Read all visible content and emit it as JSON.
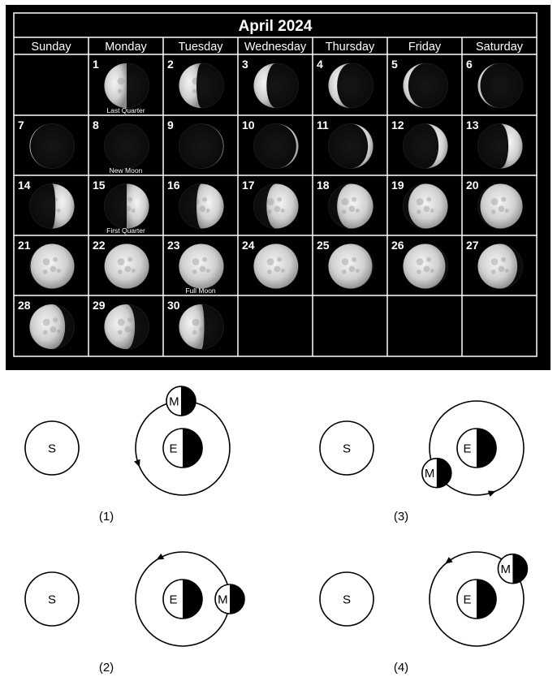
{
  "calendar": {
    "title": "April 2024",
    "weekdays": [
      "Sunday",
      "Monday",
      "Tuesday",
      "Wednesday",
      "Thursday",
      "Friday",
      "Saturday"
    ],
    "first_weekday_index": 1,
    "days": [
      {
        "day": "1",
        "phase": 0.75,
        "label": "Last Quarter"
      },
      {
        "day": "2",
        "phase": 0.785,
        "label": ""
      },
      {
        "day": "3",
        "phase": 0.82,
        "label": ""
      },
      {
        "day": "4",
        "phase": 0.855,
        "label": ""
      },
      {
        "day": "5",
        "phase": 0.89,
        "label": ""
      },
      {
        "day": "6",
        "phase": 0.925,
        "label": ""
      },
      {
        "day": "7",
        "phase": 0.96,
        "label": ""
      },
      {
        "day": "8",
        "phase": 0.0,
        "label": "New Moon"
      },
      {
        "day": "9",
        "phase": 0.035,
        "label": ""
      },
      {
        "day": "10",
        "phase": 0.07,
        "label": ""
      },
      {
        "day": "11",
        "phase": 0.11,
        "label": ""
      },
      {
        "day": "12",
        "phase": 0.15,
        "label": ""
      },
      {
        "day": "13",
        "phase": 0.19,
        "label": ""
      },
      {
        "day": "14",
        "phase": 0.225,
        "label": ""
      },
      {
        "day": "15",
        "phase": 0.25,
        "label": "First Quarter"
      },
      {
        "day": "16",
        "phase": 0.285,
        "label": ""
      },
      {
        "day": "17",
        "phase": 0.32,
        "label": ""
      },
      {
        "day": "18",
        "phase": 0.355,
        "label": ""
      },
      {
        "day": "19",
        "phase": 0.39,
        "label": ""
      },
      {
        "day": "20",
        "phase": 0.425,
        "label": ""
      },
      {
        "day": "21",
        "phase": 0.455,
        "label": ""
      },
      {
        "day": "22",
        "phase": 0.48,
        "label": ""
      },
      {
        "day": "23",
        "phase": 0.5,
        "label": "Full Moon"
      },
      {
        "day": "24",
        "phase": 0.52,
        "label": ""
      },
      {
        "day": "25",
        "phase": 0.545,
        "label": ""
      },
      {
        "day": "26",
        "phase": 0.575,
        "label": ""
      },
      {
        "day": "27",
        "phase": 0.61,
        "label": ""
      },
      {
        "day": "28",
        "phase": 0.65,
        "label": ""
      },
      {
        "day": "29",
        "phase": 0.69,
        "label": ""
      },
      {
        "day": "30",
        "phase": 0.73,
        "label": ""
      }
    ]
  },
  "diagrams": [
    {
      "number": "(1)",
      "sun_label": "S",
      "earth_label": "E",
      "moon_label": "M",
      "moon_position": "top",
      "orbit_arrow": "counterclockwise, left side"
    },
    {
      "number": "(2)",
      "sun_label": "S",
      "earth_label": "E",
      "moon_label": "M",
      "moon_position": "right",
      "orbit_arrow": "counterclockwise, top-right"
    },
    {
      "number": "(3)",
      "sun_label": "S",
      "earth_label": "E",
      "moon_label": "M",
      "moon_position": "bottom-left",
      "orbit_arrow": "counterclockwise, bottom"
    },
    {
      "number": "(4)",
      "sun_label": "S",
      "earth_label": "E",
      "moon_label": "M",
      "moon_position": "top-right",
      "orbit_arrow": "counterclockwise, top"
    }
  ],
  "colors": {
    "calendar_bg": "#000000",
    "grid": "#ffffff",
    "moon_lit": "#dedede",
    "text": "#ffffff",
    "diagram_ink": "#000000"
  }
}
